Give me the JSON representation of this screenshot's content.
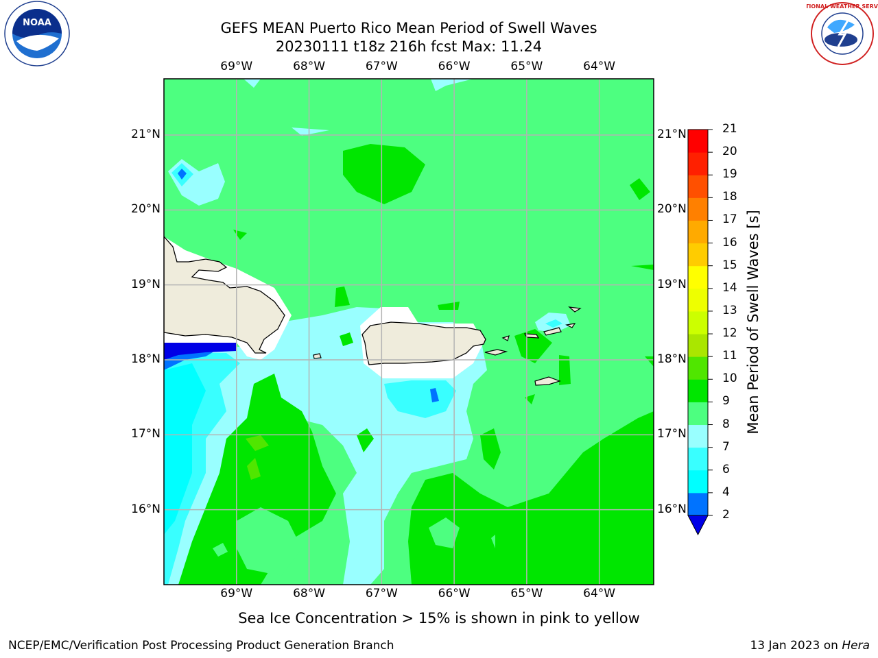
{
  "header": {
    "title_line1": "GEFS MEAN Puerto Rico Mean Period of Swell Waves",
    "title_line2": "20230111 t18z 216h fcst   Max: 11.24"
  },
  "logos": {
    "noaa": "NOAA",
    "nws": "NATIONAL WEATHER SERVICE"
  },
  "map": {
    "lon_labels": [
      "69°W",
      "68°W",
      "67°W",
      "66°W",
      "65°W",
      "64°W"
    ],
    "lat_labels": [
      "21°N",
      "20°N",
      "19°N",
      "18°N",
      "17°N",
      "16°N"
    ],
    "lon_values": [
      -69,
      -68,
      -67,
      -66,
      -65,
      -64
    ],
    "lat_values": [
      21,
      20,
      19,
      18,
      17,
      16
    ],
    "extent": {
      "lon_min": -70,
      "lon_max": -63.25,
      "lat_min": 15,
      "lat_max": 21.75
    },
    "max_value": 11.24,
    "dominant_range": "9-10 s"
  },
  "colorbar": {
    "title": "Mean Period of Swell Waves [s]",
    "levels": [
      "2",
      "4",
      "6",
      "7",
      "8",
      "9",
      "10",
      "11",
      "12",
      "13",
      "14",
      "15",
      "16",
      "17",
      "18",
      "19",
      "20",
      "21"
    ],
    "colors": [
      "#0000e6",
      "#0073ff",
      "#00ffff",
      "#39ffff",
      "#99ffff",
      "#4dff80",
      "#00e600",
      "#50e600",
      "#aae600",
      "#ccff00",
      "#eeff00",
      "#ffff00",
      "#ffcc00",
      "#ffaa00",
      "#ff8000",
      "#ff5000",
      "#ff2000",
      "#ff0000"
    ]
  },
  "footer": {
    "caption": "Sea Ice Concentration > 15% is shown in pink to yellow",
    "left": "NCEP/EMC/Verification Post Processing Product Generation Branch",
    "right_prefix": "13 Jan 2023 on ",
    "right_host": "Hera"
  }
}
